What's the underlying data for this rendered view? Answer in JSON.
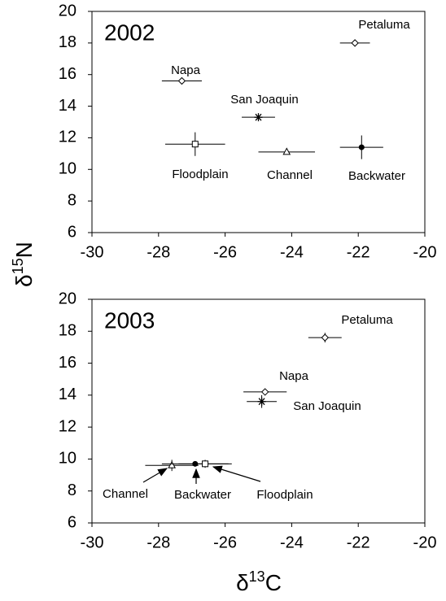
{
  "chart_data": [
    {
      "type": "scatter",
      "title": "2002",
      "labels": [
        "Petaluma",
        "Napa",
        "San Joaquin",
        "Floodplain",
        "Channel",
        "Backwater"
      ],
      "markers": [
        "open-diamond",
        "open-diamond",
        "asterisk",
        "open-square",
        "open-triangle",
        "filled-circle"
      ],
      "x": [
        -22.1,
        -27.3,
        -25.0,
        -26.9,
        -24.15,
        -21.9
      ],
      "x_err": [
        0.45,
        0.6,
        0.5,
        0.9,
        0.85,
        0.65
      ],
      "y": [
        18.0,
        15.6,
        13.3,
        11.6,
        11.1,
        11.4
      ],
      "y_err": [
        0.1,
        0.1,
        0.2,
        0.75,
        0.15,
        0.75
      ],
      "xlim": [
        -30,
        -20
      ],
      "xticks": [
        -30,
        -28,
        -26,
        -24,
        -22,
        -20
      ],
      "ylim": [
        6,
        20
      ],
      "yticks": [
        6,
        8,
        10,
        12,
        14,
        16,
        18,
        20
      ]
    },
    {
      "type": "scatter",
      "title": "2003",
      "labels": [
        "Petaluma",
        "Napa",
        "San Joaquin",
        "Channel",
        "Backwater",
        "Floodplain"
      ],
      "markers": [
        "open-diamond",
        "open-diamond",
        "asterisk",
        "open-triangle",
        "filled-circle",
        "open-square"
      ],
      "x": [
        -23.0,
        -24.8,
        -24.9,
        -27.6,
        -26.9,
        -26.6
      ],
      "x_err": [
        0.5,
        0.65,
        0.45,
        0.8,
        1.0,
        0.8
      ],
      "y": [
        17.6,
        14.2,
        13.6,
        9.6,
        9.7,
        9.7
      ],
      "y_err": [
        0.3,
        0.2,
        0.4,
        0.35,
        0.15,
        0.25
      ],
      "xlim": [
        -30,
        -20
      ],
      "xticks": [
        -30,
        -28,
        -26,
        -24,
        -22,
        -20
      ],
      "ylim": [
        6,
        20
      ],
      "yticks": [
        6,
        8,
        10,
        12,
        14,
        16,
        18,
        20
      ]
    }
  ],
  "shared_labels": {
    "ylabel": [
      "δ",
      "15",
      "N"
    ],
    "xlabel": [
      "δ",
      "13",
      "C"
    ]
  }
}
